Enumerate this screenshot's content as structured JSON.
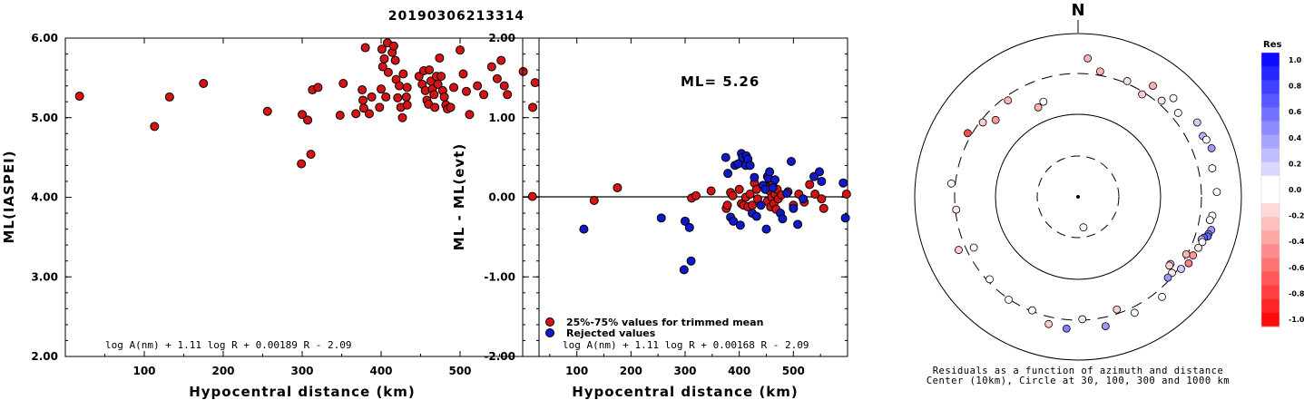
{
  "title": "20190306213314",
  "colors": {
    "kept": "#d41414",
    "rejected": "#1018c8",
    "axis": "#000000"
  },
  "chart_data": [
    {
      "type": "scatter",
      "panel": "left",
      "xlabel": "Hypocentral distance (km)",
      "ylabel": "ML(IASPEI)",
      "xlim": [
        0,
        600
      ],
      "ylim": [
        2.0,
        6.0
      ],
      "xticks": [
        "100",
        "200",
        "300",
        "400",
        "500"
      ],
      "yticks": [
        "2.00",
        "3.00",
        "4.00",
        "5.00",
        "6.00"
      ],
      "formula": "log A(nm) + 1.11 log R + 0.00189 R - 2.09",
      "series": [
        {
          "marker": "red",
          "points": [
            [
              18,
              5.27
            ],
            [
              113,
              4.89
            ],
            [
              132,
              5.26
            ],
            [
              175,
              5.43
            ],
            [
              256,
              5.08
            ],
            [
              300,
              5.04
            ],
            [
              299,
              4.42
            ],
            [
              311,
              4.54
            ],
            [
              307,
              4.97
            ],
            [
              313,
              5.35
            ],
            [
              320,
              5.38
            ],
            [
              348,
              5.03
            ],
            [
              352,
              5.43
            ],
            [
              368,
              5.05
            ],
            [
              376,
              5.35
            ],
            [
              377,
              5.22
            ],
            [
              378,
              5.12
            ],
            [
              385,
              5.05
            ],
            [
              388,
              5.26
            ],
            [
              380,
              5.88
            ],
            [
              401,
              5.86
            ],
            [
              404,
              5.74
            ],
            [
              406,
              5.26
            ],
            [
              408,
              5.94
            ],
            [
              409,
              5.57
            ],
            [
              414,
              5.82
            ],
            [
              416,
              5.9
            ],
            [
              418,
              5.72
            ],
            [
              419,
              5.48
            ],
            [
              421,
              5.25
            ],
            [
              423,
              5.4
            ],
            [
              425,
              5.13
            ],
            [
              427,
              5.0
            ],
            [
              428,
              5.55
            ],
            [
              432,
              5.26
            ],
            [
              433,
              5.38
            ],
            [
              398,
              5.13
            ],
            [
              400,
              5.36
            ],
            [
              402,
              5.64
            ],
            [
              448,
              5.52
            ],
            [
              452,
              5.42
            ],
            [
              454,
              5.59
            ],
            [
              456,
              5.34
            ],
            [
              458,
              5.22
            ],
            [
              460,
              5.17
            ],
            [
              461,
              5.6
            ],
            [
              463,
              5.46
            ],
            [
              465,
              5.36
            ],
            [
              467,
              5.29
            ],
            [
              468,
              5.13
            ],
            [
              470,
              5.52
            ],
            [
              472,
              5.42
            ],
            [
              474,
              5.75
            ],
            [
              476,
              5.52
            ],
            [
              478,
              5.34
            ],
            [
              480,
              5.26
            ],
            [
              482,
              5.16
            ],
            [
              484,
              5.11
            ],
            [
              488,
              5.13
            ],
            [
              492,
              5.38
            ],
            [
              500,
              5.85
            ],
            [
              504,
              5.55
            ],
            [
              508,
              5.33
            ],
            [
              512,
              5.04
            ],
            [
              522,
              5.4
            ],
            [
              530,
              5.29
            ],
            [
              540,
              5.64
            ],
            [
              547,
              5.49
            ],
            [
              552,
              5.72
            ],
            [
              556,
              5.4
            ],
            [
              560,
              5.29
            ],
            [
              580,
              5.58
            ],
            [
              595,
              5.44
            ],
            [
              592,
              5.13
            ],
            [
              433,
              5.16
            ]
          ]
        }
      ]
    },
    {
      "type": "scatter",
      "panel": "middle",
      "xlabel": "Hypocentral distance (km)",
      "ylabel": "ML - ML(evt)",
      "xlim": [
        0,
        600
      ],
      "ylim": [
        -2.0,
        2.0
      ],
      "xticks": [
        "100",
        "200",
        "300",
        "400",
        "500"
      ],
      "yticks": [
        "-2.00",
        "-1.00",
        "0.00",
        "1.00",
        "2.00"
      ],
      "annotation": "ML= 5.26",
      "formula": "log A(nm) + 1.11 log R + 0.00168 R - 2.09",
      "legend": [
        "25%-75% values for trimmed mean",
        "Rejected values"
      ],
      "series": [
        {
          "name": "25%-75% values for trimmed mean",
          "marker": "red",
          "points": [
            [
              18,
              0.01
            ],
            [
              132,
              -0.04
            ],
            [
              175,
              0.12
            ],
            [
              312,
              -0.01
            ],
            [
              320,
              0.02
            ],
            [
              348,
              0.08
            ],
            [
              376,
              -0.14
            ],
            [
              378,
              -0.1
            ],
            [
              384,
              0.06
            ],
            [
              388,
              0.02
            ],
            [
              400,
              0.1
            ],
            [
              404,
              -0.08
            ],
            [
              408,
              -0.1
            ],
            [
              412,
              0.0
            ],
            [
              416,
              -0.12
            ],
            [
              420,
              0.04
            ],
            [
              424,
              -0.1
            ],
            [
              428,
              0.18
            ],
            [
              432,
              0.1
            ],
            [
              434,
              -0.02
            ],
            [
              448,
              0.14
            ],
            [
              452,
              -0.05
            ],
            [
              456,
              0.08
            ],
            [
              458,
              -0.12
            ],
            [
              460,
              0.0
            ],
            [
              462,
              0.18
            ],
            [
              464,
              -0.08
            ],
            [
              466,
              0.04
            ],
            [
              468,
              -0.15
            ],
            [
              470,
              0.1
            ],
            [
              472,
              -0.02
            ],
            [
              478,
              0.03
            ],
            [
              490,
              0.07
            ],
            [
              500,
              -0.1
            ],
            [
              510,
              0.04
            ],
            [
              520,
              -0.06
            ],
            [
              530,
              0.16
            ],
            [
              540,
              0.04
            ],
            [
              552,
              -0.02
            ],
            [
              556,
              -0.14
            ],
            [
              598,
              0.04
            ]
          ]
        },
        {
          "name": "Rejected values",
          "marker": "blue",
          "points": [
            [
              113,
              -0.4
            ],
            [
              256,
              -0.26
            ],
            [
              298,
              -0.91
            ],
            [
              300,
              -0.3
            ],
            [
              308,
              -0.38
            ],
            [
              311,
              -0.8
            ],
            [
              375,
              0.5
            ],
            [
              379,
              0.3
            ],
            [
              384,
              -0.25
            ],
            [
              389,
              -0.3
            ],
            [
              392,
              0.4
            ],
            [
              398,
              0.42
            ],
            [
              402,
              -0.35
            ],
            [
              404,
              0.55
            ],
            [
              406,
              0.5
            ],
            [
              412,
              0.4
            ],
            [
              413,
              0.52
            ],
            [
              416,
              0.48
            ],
            [
              420,
              0.4
            ],
            [
              424,
              -0.2
            ],
            [
              428,
              0.25
            ],
            [
              432,
              -0.24
            ],
            [
              440,
              -0.1
            ],
            [
              444,
              0.15
            ],
            [
              448,
              0.1
            ],
            [
              450,
              -0.4
            ],
            [
              452,
              0.26
            ],
            [
              454,
              0.24
            ],
            [
              456,
              0.32
            ],
            [
              462,
              0.12
            ],
            [
              466,
              0.22
            ],
            [
              476,
              -0.2
            ],
            [
              480,
              -0.27
            ],
            [
              488,
              0.05
            ],
            [
              496,
              0.45
            ],
            [
              500,
              -0.14
            ],
            [
              508,
              -0.34
            ],
            [
              518,
              -0.02
            ],
            [
              538,
              0.26
            ],
            [
              548,
              0.32
            ],
            [
              552,
              0.2
            ],
            [
              592,
              0.18
            ],
            [
              596,
              -0.26
            ]
          ]
        }
      ]
    }
  ],
  "polar": {
    "north_label": "N",
    "caption1": "Residuals as a function of azimuth and distance",
    "caption2": "Center (10km), Circle at 30, 100, 300 and 1000 km",
    "points": [
      [
        -20,
        0.62,
        0.0
      ],
      [
        -24,
        0.6,
        -0.3
      ],
      [
        -36,
        0.73,
        -0.3
      ],
      [
        -47,
        0.69,
        -0.4
      ],
      [
        -60,
        0.78,
        -0.7
      ],
      [
        -52,
        0.74,
        -0.2
      ],
      [
        4,
        0.85,
        -0.3
      ],
      [
        10,
        0.78,
        -0.3
      ],
      [
        23,
        0.77,
        -0.1
      ],
      [
        32,
        0.74,
        -0.2
      ],
      [
        34,
        0.82,
        -0.3
      ],
      [
        41,
        0.78,
        -0.1
      ],
      [
        44,
        0.84,
        0.0
      ],
      [
        50,
        0.8,
        0.0
      ],
      [
        58,
        0.86,
        0.2
      ],
      [
        64,
        0.85,
        0.3
      ],
      [
        66,
        0.86,
        0.0
      ],
      [
        70,
        0.87,
        0.4
      ],
      [
        78,
        0.84,
        0.0
      ],
      [
        88,
        0.85,
        0.0
      ],
      [
        98,
        0.83,
        0.0
      ],
      [
        100,
        0.82,
        0.0
      ],
      [
        104,
        0.84,
        0.4
      ],
      [
        106,
        0.83,
        0.5
      ],
      [
        107,
        0.83,
        0.6
      ],
      [
        108,
        0.81,
        0.6
      ],
      [
        109,
        0.8,
        0.3
      ],
      [
        110,
        0.81,
        0.0
      ],
      [
        113,
        0.8,
        -0.1
      ],
      [
        117,
        0.79,
        -0.4
      ],
      [
        118,
        0.75,
        -0.3
      ],
      [
        121,
        0.79,
        -0.5
      ],
      [
        125,
        0.77,
        0.2
      ],
      [
        126,
        0.7,
        0.2
      ],
      [
        127,
        0.7,
        -0.2
      ],
      [
        129,
        0.74,
        -0.1
      ],
      [
        132,
        0.74,
        0.4
      ],
      [
        140,
        0.8,
        0.0
      ],
      [
        154,
        0.79,
        0.0
      ],
      [
        161,
        0.73,
        -0.2
      ],
      [
        168,
        0.81,
        0.4
      ],
      [
        178,
        0.75,
        -0.1
      ],
      [
        185,
        0.81,
        0.5
      ],
      [
        193,
        0.8,
        -0.2
      ],
      [
        202,
        0.75,
        0.0
      ],
      [
        214,
        0.76,
        0.0
      ],
      [
        227,
        0.74,
        0.0
      ],
      [
        244,
        0.71,
        0.0
      ],
      [
        246,
        0.8,
        -0.2
      ],
      [
        264,
        0.75,
        -0.1
      ],
      [
        276,
        0.78,
        0.0
      ],
      [
        170,
        0.19,
        0.0
      ],
      [
        0,
        0.0,
        0.0
      ]
    ],
    "colorbar": {
      "title": "Res",
      "ticks": [
        "1.0",
        "0.8",
        "0.6",
        "0.4",
        "0.2",
        "0.0",
        "-0.2",
        "-0.4",
        "-0.6",
        "-0.8",
        "-1.0"
      ]
    }
  }
}
